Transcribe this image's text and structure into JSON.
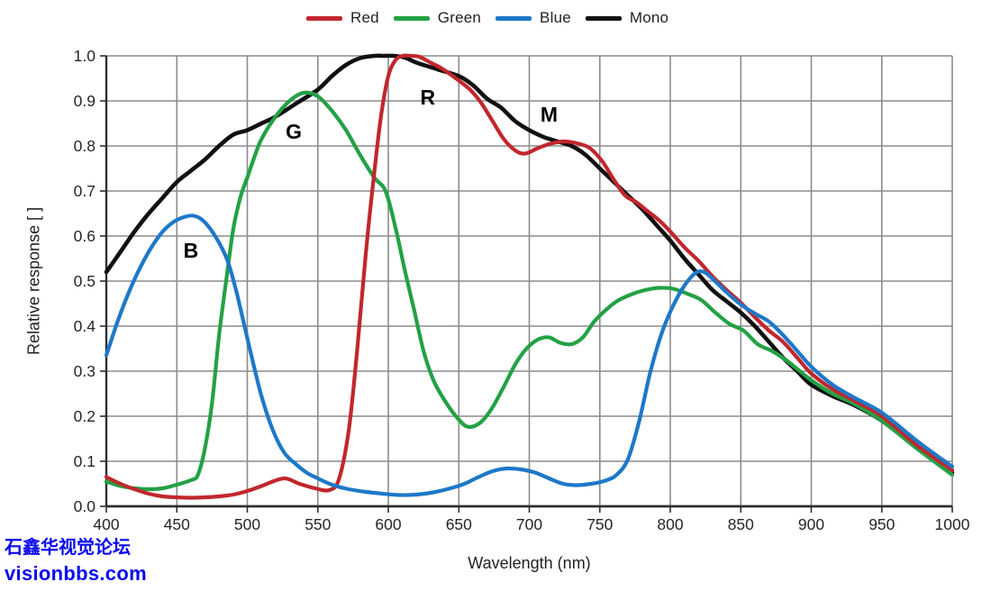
{
  "watermark": {
    "line1": "石鑫华视觉论坛",
    "line2": "visionbbs.com",
    "color": "#0707ee"
  },
  "chart_data": {
    "type": "line",
    "title": "",
    "xlabel": "Wavelength (nm)",
    "ylabel": "Relative response [ ]",
    "xlim": [
      400,
      1000
    ],
    "ylim": [
      0.0,
      1.0
    ],
    "grid": true,
    "legend_position": "top",
    "x_ticks": [
      400,
      450,
      500,
      550,
      600,
      650,
      700,
      750,
      800,
      850,
      900,
      950,
      1000
    ],
    "y_ticks": [
      "0.0",
      "0.1",
      "0.2",
      "0.3",
      "0.4",
      "0.5",
      "0.6",
      "0.7",
      "0.8",
      "0.9",
      "1.0"
    ],
    "series": [
      {
        "name": "Red",
        "color": "#c1272d",
        "points": [
          [
            400,
            0.065
          ],
          [
            410,
            0.05
          ],
          [
            420,
            0.038
          ],
          [
            430,
            0.028
          ],
          [
            440,
            0.022
          ],
          [
            450,
            0.02
          ],
          [
            460,
            0.019
          ],
          [
            470,
            0.02
          ],
          [
            480,
            0.022
          ],
          [
            490,
            0.026
          ],
          [
            500,
            0.034
          ],
          [
            510,
            0.045
          ],
          [
            518,
            0.055
          ],
          [
            527,
            0.062
          ],
          [
            537,
            0.05
          ],
          [
            548,
            0.04
          ],
          [
            558,
            0.036
          ],
          [
            565,
            0.06
          ],
          [
            572,
            0.17
          ],
          [
            578,
            0.35
          ],
          [
            584,
            0.56
          ],
          [
            590,
            0.74
          ],
          [
            595,
            0.87
          ],
          [
            600,
            0.955
          ],
          [
            605,
            0.99
          ],
          [
            610,
            1.0
          ],
          [
            616,
            1.0
          ],
          [
            622,
            0.998
          ],
          [
            630,
            0.985
          ],
          [
            638,
            0.972
          ],
          [
            650,
            0.945
          ],
          [
            658,
            0.925
          ],
          [
            666,
            0.895
          ],
          [
            674,
            0.855
          ],
          [
            682,
            0.815
          ],
          [
            690,
            0.79
          ],
          [
            697,
            0.783
          ],
          [
            706,
            0.795
          ],
          [
            715,
            0.805
          ],
          [
            725,
            0.81
          ],
          [
            735,
            0.805
          ],
          [
            743,
            0.795
          ],
          [
            752,
            0.765
          ],
          [
            760,
            0.725
          ],
          [
            768,
            0.69
          ],
          [
            776,
            0.675
          ],
          [
            784,
            0.655
          ],
          [
            792,
            0.635
          ],
          [
            800,
            0.61
          ],
          [
            810,
            0.575
          ],
          [
            820,
            0.545
          ],
          [
            830,
            0.51
          ],
          [
            840,
            0.48
          ],
          [
            850,
            0.452
          ],
          [
            860,
            0.42
          ],
          [
            870,
            0.39
          ],
          [
            880,
            0.365
          ],
          [
            890,
            0.33
          ],
          [
            900,
            0.295
          ],
          [
            915,
            0.26
          ],
          [
            930,
            0.235
          ],
          [
            950,
            0.2
          ],
          [
            975,
            0.135
          ],
          [
            1000,
            0.08
          ]
        ]
      },
      {
        "name": "Green",
        "color": "#23a145",
        "points": [
          [
            400,
            0.055
          ],
          [
            410,
            0.045
          ],
          [
            420,
            0.04
          ],
          [
            430,
            0.038
          ],
          [
            440,
            0.04
          ],
          [
            450,
            0.048
          ],
          [
            460,
            0.058
          ],
          [
            465,
            0.07
          ],
          [
            470,
            0.13
          ],
          [
            475,
            0.23
          ],
          [
            480,
            0.38
          ],
          [
            485,
            0.5
          ],
          [
            490,
            0.615
          ],
          [
            495,
            0.685
          ],
          [
            500,
            0.73
          ],
          [
            505,
            0.775
          ],
          [
            510,
            0.815
          ],
          [
            520,
            0.865
          ],
          [
            530,
            0.9
          ],
          [
            540,
            0.918
          ],
          [
            550,
            0.91
          ],
          [
            560,
            0.878
          ],
          [
            570,
            0.835
          ],
          [
            580,
            0.78
          ],
          [
            590,
            0.73
          ],
          [
            598,
            0.7
          ],
          [
            605,
            0.62
          ],
          [
            612,
            0.52
          ],
          [
            618,
            0.44
          ],
          [
            625,
            0.345
          ],
          [
            632,
            0.28
          ],
          [
            640,
            0.235
          ],
          [
            648,
            0.2
          ],
          [
            656,
            0.177
          ],
          [
            665,
            0.185
          ],
          [
            673,
            0.215
          ],
          [
            681,
            0.26
          ],
          [
            690,
            0.315
          ],
          [
            698,
            0.35
          ],
          [
            706,
            0.37
          ],
          [
            714,
            0.375
          ],
          [
            722,
            0.363
          ],
          [
            730,
            0.36
          ],
          [
            738,
            0.375
          ],
          [
            746,
            0.41
          ],
          [
            754,
            0.435
          ],
          [
            762,
            0.455
          ],
          [
            772,
            0.47
          ],
          [
            782,
            0.48
          ],
          [
            792,
            0.485
          ],
          [
            802,
            0.483
          ],
          [
            812,
            0.472
          ],
          [
            822,
            0.458
          ],
          [
            832,
            0.43
          ],
          [
            842,
            0.405
          ],
          [
            852,
            0.39
          ],
          [
            862,
            0.36
          ],
          [
            872,
            0.345
          ],
          [
            882,
            0.325
          ],
          [
            892,
            0.3
          ],
          [
            900,
            0.28
          ],
          [
            915,
            0.25
          ],
          [
            930,
            0.228
          ],
          [
            950,
            0.19
          ],
          [
            975,
            0.128
          ],
          [
            1000,
            0.07
          ]
        ]
      },
      {
        "name": "Blue",
        "color": "#1e78c8",
        "points": [
          [
            400,
            0.335
          ],
          [
            408,
            0.41
          ],
          [
            416,
            0.475
          ],
          [
            424,
            0.53
          ],
          [
            432,
            0.575
          ],
          [
            440,
            0.61
          ],
          [
            448,
            0.632
          ],
          [
            456,
            0.643
          ],
          [
            462,
            0.645
          ],
          [
            468,
            0.636
          ],
          [
            474,
            0.615
          ],
          [
            480,
            0.585
          ],
          [
            486,
            0.545
          ],
          [
            492,
            0.48
          ],
          [
            498,
            0.4
          ],
          [
            504,
            0.32
          ],
          [
            510,
            0.245
          ],
          [
            518,
            0.17
          ],
          [
            526,
            0.12
          ],
          [
            534,
            0.095
          ],
          [
            542,
            0.075
          ],
          [
            550,
            0.062
          ],
          [
            560,
            0.048
          ],
          [
            572,
            0.038
          ],
          [
            584,
            0.032
          ],
          [
            596,
            0.028
          ],
          [
            608,
            0.025
          ],
          [
            620,
            0.026
          ],
          [
            632,
            0.031
          ],
          [
            644,
            0.04
          ],
          [
            654,
            0.05
          ],
          [
            664,
            0.065
          ],
          [
            674,
            0.078
          ],
          [
            684,
            0.084
          ],
          [
            694,
            0.082
          ],
          [
            704,
            0.075
          ],
          [
            714,
            0.062
          ],
          [
            724,
            0.05
          ],
          [
            734,
            0.047
          ],
          [
            744,
            0.05
          ],
          [
            754,
            0.057
          ],
          [
            762,
            0.07
          ],
          [
            770,
            0.105
          ],
          [
            778,
            0.19
          ],
          [
            786,
            0.3
          ],
          [
            794,
            0.385
          ],
          [
            802,
            0.445
          ],
          [
            810,
            0.49
          ],
          [
            818,
            0.518
          ],
          [
            824,
            0.52
          ],
          [
            830,
            0.505
          ],
          [
            840,
            0.475
          ],
          [
            850,
            0.448
          ],
          [
            860,
            0.428
          ],
          [
            870,
            0.41
          ],
          [
            880,
            0.38
          ],
          [
            890,
            0.345
          ],
          [
            900,
            0.31
          ],
          [
            915,
            0.27
          ],
          [
            930,
            0.242
          ],
          [
            950,
            0.208
          ],
          [
            975,
            0.145
          ],
          [
            1000,
            0.088
          ]
        ]
      },
      {
        "name": "Mono",
        "color": "#111111",
        "points": [
          [
            400,
            0.52
          ],
          [
            410,
            0.565
          ],
          [
            420,
            0.61
          ],
          [
            430,
            0.65
          ],
          [
            440,
            0.685
          ],
          [
            450,
            0.72
          ],
          [
            460,
            0.745
          ],
          [
            470,
            0.77
          ],
          [
            480,
            0.8
          ],
          [
            490,
            0.825
          ],
          [
            500,
            0.835
          ],
          [
            510,
            0.85
          ],
          [
            520,
            0.865
          ],
          [
            535,
            0.895
          ],
          [
            550,
            0.925
          ],
          [
            560,
            0.955
          ],
          [
            570,
            0.98
          ],
          [
            580,
            0.995
          ],
          [
            590,
            1.0
          ],
          [
            597,
            1.0
          ],
          [
            604,
            1.0
          ],
          [
            612,
            0.996
          ],
          [
            620,
            0.985
          ],
          [
            635,
            0.97
          ],
          [
            650,
            0.955
          ],
          [
            660,
            0.935
          ],
          [
            670,
            0.905
          ],
          [
            680,
            0.885
          ],
          [
            690,
            0.855
          ],
          [
            700,
            0.835
          ],
          [
            710,
            0.82
          ],
          [
            720,
            0.81
          ],
          [
            730,
            0.8
          ],
          [
            740,
            0.78
          ],
          [
            750,
            0.75
          ],
          [
            760,
            0.72
          ],
          [
            770,
            0.69
          ],
          [
            780,
            0.66
          ],
          [
            790,
            0.625
          ],
          [
            800,
            0.59
          ],
          [
            810,
            0.55
          ],
          [
            820,
            0.515
          ],
          [
            830,
            0.48
          ],
          [
            840,
            0.455
          ],
          [
            850,
            0.43
          ],
          [
            860,
            0.4
          ],
          [
            870,
            0.365
          ],
          [
            880,
            0.33
          ],
          [
            890,
            0.3
          ],
          [
            900,
            0.27
          ],
          [
            915,
            0.245
          ],
          [
            930,
            0.225
          ],
          [
            950,
            0.19
          ],
          [
            975,
            0.13
          ],
          [
            1000,
            0.075
          ]
        ]
      }
    ],
    "annotations": [
      {
        "text": "B",
        "x": 460,
        "y": 0.568
      },
      {
        "text": "G",
        "x": 533,
        "y": 0.832
      },
      {
        "text": "R",
        "x": 628,
        "y": 0.908
      },
      {
        "text": "M",
        "x": 714,
        "y": 0.87
      }
    ]
  }
}
